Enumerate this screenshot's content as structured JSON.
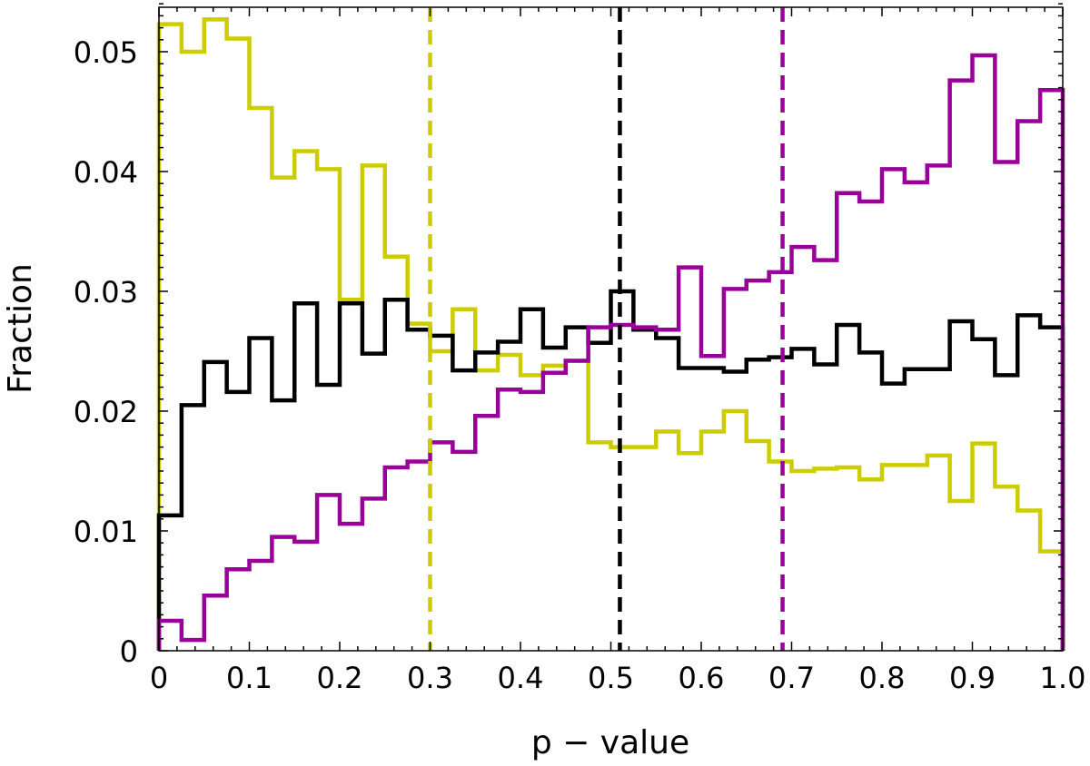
{
  "chart_data": {
    "type": "line",
    "subtype": "step-histogram",
    "title": "",
    "xlabel": "p − value",
    "ylabel": "Fraction",
    "xlim": [
      0,
      1
    ],
    "ylim": [
      0,
      0.054
    ],
    "bin_width": 0.025,
    "x_ticks": [
      "0",
      "0.1",
      "0.2",
      "0.3",
      "0.4",
      "0.5",
      "0.6",
      "0.7",
      "0.8",
      "0.9",
      "1.0"
    ],
    "x_tick_values": [
      0,
      0.1,
      0.2,
      0.3,
      0.4,
      0.5,
      0.6,
      0.7,
      0.8,
      0.9,
      1.0
    ],
    "y_ticks": [
      "0",
      "0.01",
      "0.02",
      "0.03",
      "0.04",
      "0.05"
    ],
    "y_tick_values": [
      0,
      0.01,
      0.02,
      0.03,
      0.04,
      0.05
    ],
    "grid": false,
    "series": [
      {
        "name": "yellow",
        "color": "#cccc00",
        "median": 0.3,
        "values": [
          0.0523,
          0.05,
          0.0527,
          0.0511,
          0.0453,
          0.0395,
          0.0417,
          0.0402,
          0.0293,
          0.0405,
          0.0329,
          0.0273,
          0.025,
          0.0285,
          0.0234,
          0.0247,
          0.023,
          0.0238,
          0.0242,
          0.0174,
          0.017,
          0.017,
          0.0183,
          0.0165,
          0.0183,
          0.02,
          0.0175,
          0.0158,
          0.015,
          0.0152,
          0.0153,
          0.0143,
          0.0155,
          0.0155,
          0.0163,
          0.0125,
          0.0173,
          0.0137,
          0.0117,
          0.0083
        ]
      },
      {
        "name": "black",
        "color": "#000000",
        "median": 0.51,
        "values": [
          0.0113,
          0.0205,
          0.0241,
          0.0216,
          0.0261,
          0.0209,
          0.029,
          0.0222,
          0.029,
          0.0248,
          0.0293,
          0.0268,
          0.0263,
          0.0234,
          0.0249,
          0.0258,
          0.0285,
          0.0253,
          0.027,
          0.0257,
          0.03,
          0.0268,
          0.0261,
          0.0236,
          0.0236,
          0.0233,
          0.0243,
          0.0245,
          0.0252,
          0.0239,
          0.0272,
          0.0249,
          0.0223,
          0.0235,
          0.0235,
          0.0275,
          0.026,
          0.023,
          0.028,
          0.027
        ]
      },
      {
        "name": "purple",
        "color": "#990099",
        "median": 0.69,
        "values": [
          0.0025,
          0.0009,
          0.0046,
          0.0068,
          0.0075,
          0.0095,
          0.0091,
          0.013,
          0.0106,
          0.0127,
          0.0153,
          0.0158,
          0.0174,
          0.0166,
          0.0196,
          0.0218,
          0.0216,
          0.0232,
          0.0242,
          0.027,
          0.0272,
          0.027,
          0.0268,
          0.032,
          0.0246,
          0.0302,
          0.0309,
          0.0316,
          0.0337,
          0.0326,
          0.0382,
          0.0375,
          0.0402,
          0.0391,
          0.0405,
          0.0476,
          0.0497,
          0.0408,
          0.0442,
          0.0468
        ]
      }
    ]
  }
}
